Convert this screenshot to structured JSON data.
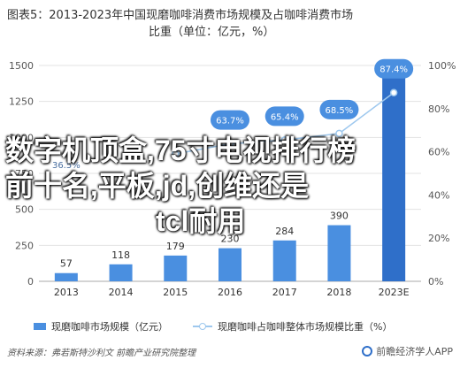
{
  "title": {
    "line1": "图表5：2013-2023年中国现磨咖啡消费市场规模及占咖啡消费市场",
    "line2": "比重（单位：亿元，%）"
  },
  "overlay": {
    "line1": "数字机顶盒,75寸电视排行榜",
    "line2": "前十名,平板,jd,创维还是",
    "line3": "tcl耐用"
  },
  "legend": {
    "bar_label": "现磨咖啡市场规模（亿元）",
    "line_label": "现磨咖啡占咖啡整体市场规模比重（%）"
  },
  "source": "资料来源：弗若斯特沙利文 前瞻产业研究院整理",
  "brand": "前瞻经济学人APP",
  "colors": {
    "bar": "#4a8fe0",
    "bar_last": "#2f6fc9",
    "line": "#9ec8ee",
    "label_bubble": "#4a8fe0"
  },
  "chart_data": {
    "type": "bar",
    "categories": [
      "2013",
      "2014",
      "2015",
      "2016",
      "2017",
      "2018",
      "2023E"
    ],
    "series": [
      {
        "name": "现磨咖啡市场规模（亿元）",
        "type": "bar",
        "axis": "left",
        "values": [
          57,
          118,
          179,
          230,
          284,
          390,
          1579
        ],
        "labels": [
          "57",
          "118",
          "179",
          "230",
          "284",
          "390",
          ""
        ]
      },
      {
        "name": "现磨咖啡占咖啡整体市场规模比重（%）",
        "type": "line",
        "axis": "right",
        "values": [
          null,
          null,
          59.0,
          63.7,
          65.4,
          68.5,
          87.4
        ],
        "labels": [
          "",
          "",
          "",
          "63.7%",
          "65.4%",
          "68.5%",
          "87.4%"
        ],
        "overlay_labels": [
          "36.5%",
          "",
          "",
          "",
          "",
          "",
          ""
        ]
      }
    ],
    "y_left": {
      "ylim": [
        0,
        1500
      ],
      "ticks": [
        "0",
        "250",
        "500",
        "750",
        "1000",
        "1250",
        "1500"
      ]
    },
    "y_right": {
      "ylim": [
        0,
        100
      ],
      "ticks": [
        "0%",
        "20%",
        "40%",
        "60%",
        "80%",
        "100%"
      ]
    },
    "grid": true,
    "legend_position": "bottom"
  }
}
